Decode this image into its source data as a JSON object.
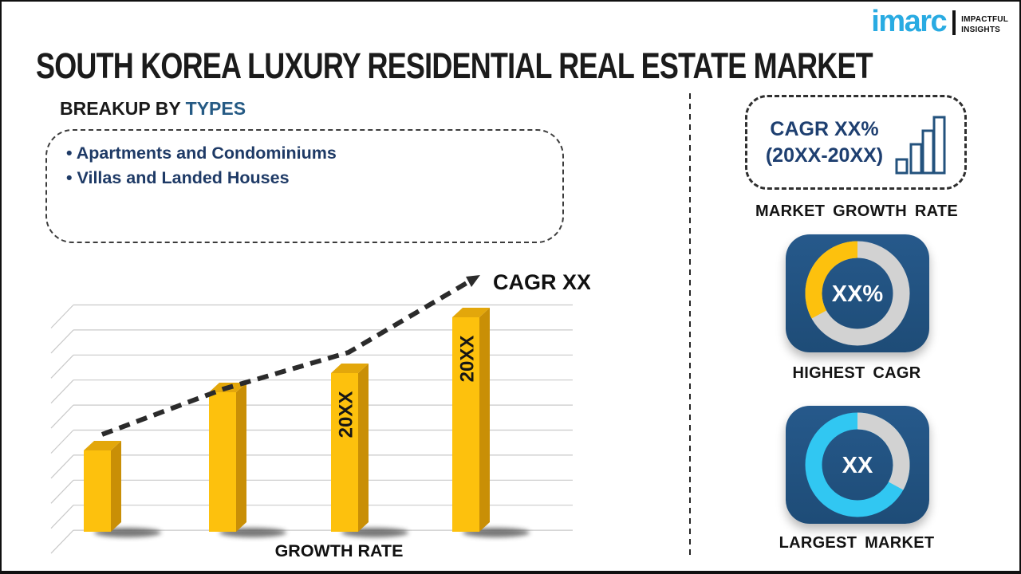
{
  "page": {
    "title": "SOUTH KOREA LUXURY RESIDENTIAL REAL ESTATE MARKET"
  },
  "logo": {
    "brand": "imarc",
    "tagline_line1": "IMPACTFUL",
    "tagline_line2": "INSIGHTS",
    "brand_color": "#29abe2"
  },
  "breakup": {
    "heading_prefix": "BREAKUP BY ",
    "heading_highlight": "TYPES",
    "items": [
      "Apartments and Condominiums",
      "Villas and Landed Houses"
    ]
  },
  "sidebar": {
    "growth_card": {
      "line1": "CAGR XX%",
      "line2": "(20XX-20XX)",
      "icon": "bar-chart-icon"
    },
    "growth_label": "MARKET GROWTH RATE",
    "highest_cagr_label": "HIGHEST CAGR",
    "largest_market_label": "LARGEST MARKET"
  },
  "colors": {
    "accent_navy_text": "#1e3f70",
    "card_navy": "#21527e",
    "bar_yellow": "#fdc10d",
    "bar_yellow_side": "#c98f06",
    "bar_yellow_top": "#e3a70b",
    "donut_cyan": "#31c7f2",
    "donut_gray": "#d2d2d2",
    "logo_blue": "#29abe2"
  },
  "chart_data": [
    {
      "id": "growth-rate-bar-chart",
      "type": "bar",
      "title": "",
      "xlabel": "GROWTH RATE",
      "ylabel": "",
      "categories": [
        "",
        "",
        "20XX",
        "20XX"
      ],
      "values": [
        38,
        65,
        74,
        100
      ],
      "values_note": "placeholder infographic bars, heights as % of tallest bar (no numeric axis shown)",
      "annotation": "CAGR XX%",
      "trend": "dashed rising arrow",
      "bar_color": "#fdc10d",
      "grid": true,
      "legend": "none"
    },
    {
      "id": "highest-cagr-donut",
      "type": "pie",
      "center_label": "XX%",
      "arc_direction": "ccw",
      "slices": [
        {
          "name": "highlighted-share",
          "value": 33,
          "color": "#fdc10d"
        },
        {
          "name": "remainder",
          "value": 67,
          "color": "#d2d2d2"
        }
      ]
    },
    {
      "id": "largest-market-donut",
      "type": "pie",
      "center_label": "XX",
      "arc_direction": "cw",
      "slices": [
        {
          "name": "remainder",
          "value": 33,
          "color": "#d2d2d2"
        },
        {
          "name": "highlighted-share",
          "value": 67,
          "color": "#31c7f2"
        }
      ]
    }
  ]
}
